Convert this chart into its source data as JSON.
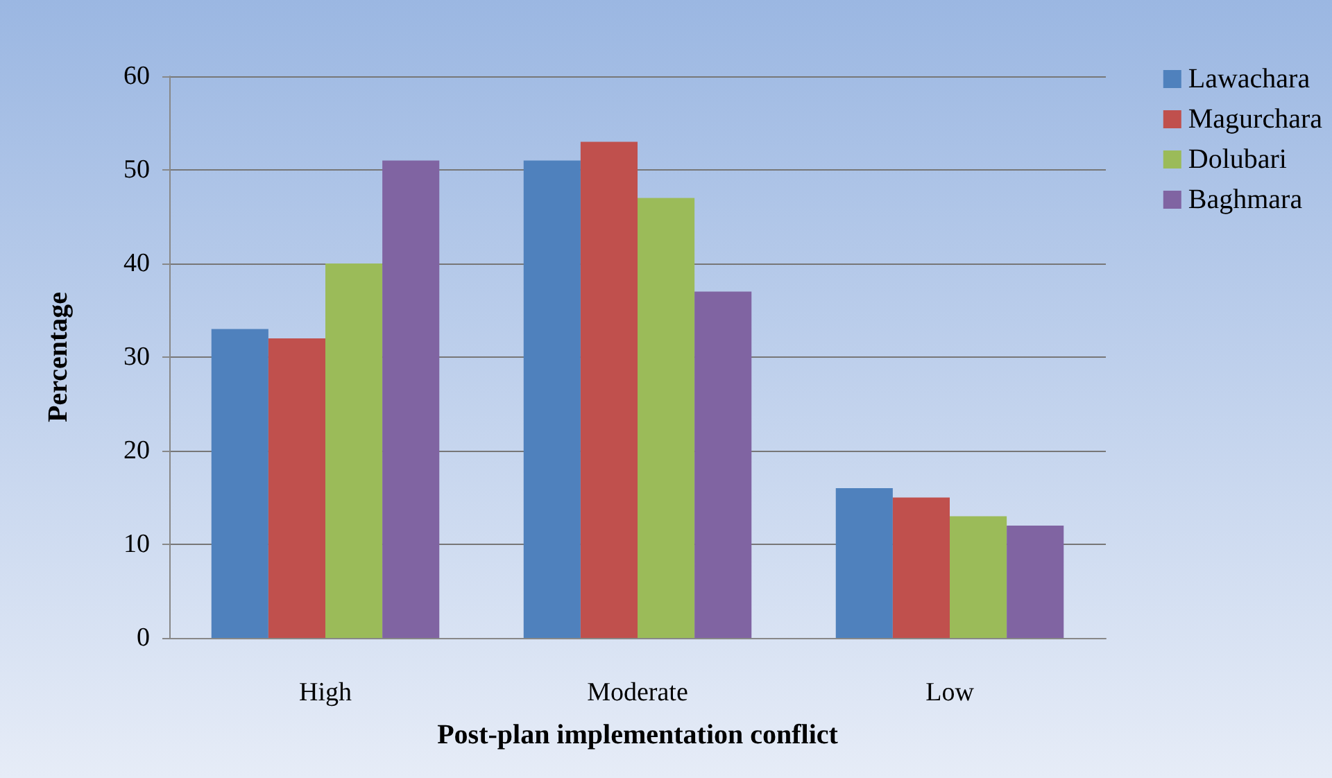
{
  "chart_data": {
    "type": "bar",
    "xlabel": "Post-plan implementation conflict",
    "ylabel": "Percentage",
    "categories": [
      "High",
      "Moderate",
      "Low"
    ],
    "series": [
      {
        "name": "Lawachara",
        "color": "#4f81bd",
        "values": [
          33,
          51,
          16
        ]
      },
      {
        "name": "Magurchara",
        "color": "#c0504d",
        "values": [
          32,
          53,
          15
        ]
      },
      {
        "name": "Dolubari",
        "color": "#9bbb59",
        "values": [
          40,
          47,
          13
        ]
      },
      {
        "name": "Baghmara",
        "color": "#8064a2",
        "values": [
          51,
          37,
          12
        ]
      }
    ],
    "ylim": [
      0,
      60
    ],
    "yticks": [
      0,
      10,
      20,
      30,
      40,
      50,
      60
    ],
    "grid": "y",
    "legend": "top right"
  }
}
